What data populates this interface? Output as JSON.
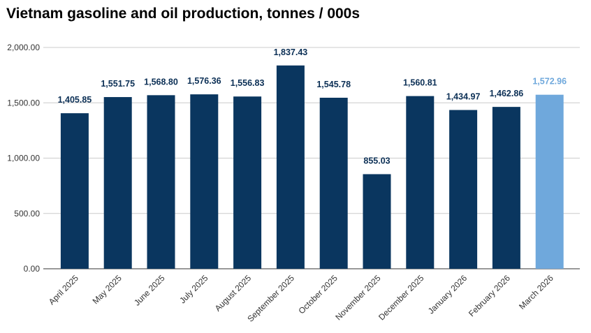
{
  "chart_data": {
    "type": "bar",
    "title": "Vietnam gasoline and oil production, tonnes / 000s",
    "xlabel": "",
    "ylabel": "",
    "ylim": [
      0,
      2000
    ],
    "yticks": [
      0,
      500,
      1000,
      1500,
      2000
    ],
    "ytick_labels": [
      "0.00",
      "500.00",
      "1,000.00",
      "1,500.00",
      "2,000.00"
    ],
    "grid": true,
    "categories": [
      "April 2025",
      "May 2025",
      "June 2025",
      "July 2025",
      "August 2025",
      "September 2025",
      "October 2025",
      "November 2025",
      "December 2025",
      "January 2026",
      "February 2026",
      "March 2026"
    ],
    "values": [
      1405.85,
      1551.75,
      1568.8,
      1576.36,
      1556.83,
      1837.43,
      1545.78,
      855.03,
      1560.81,
      1434.97,
      1462.86,
      1572.96
    ],
    "data_labels": [
      "1,405.85",
      "1,551.75",
      "1,568.80",
      "1,576.36",
      "1,556.83",
      "1,837.43",
      "1,545.78",
      "855.03",
      "1,560.81",
      "1,434.97",
      "1,462.86",
      "1,572.96"
    ],
    "colors": {
      "bar": "#0a365f",
      "highlight_bar": "#6fa8dc",
      "label": "#0b2f55",
      "highlight_label": "#6fa8dc",
      "grid": "#cccccc"
    },
    "highlight_index": 11
  }
}
